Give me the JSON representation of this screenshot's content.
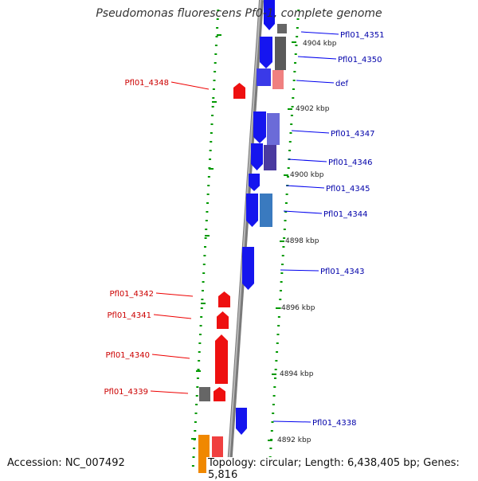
{
  "title": "Pseudomonas fluorescens Pf0-1, complete genome",
  "footer": {
    "accession": "Accession: NC_007492",
    "topology": "Topology: circular; Length: 6,438,405 bp; Genes: 5,816"
  },
  "colors": {
    "backbone": "#8a8a8a",
    "forward_gene": "#0000ee",
    "reverse_gene": "#ee0000",
    "tick": "#009900",
    "forward_label": "#0000aa",
    "reverse_label": "#cc0000"
  },
  "scale_labels": [
    "4904 kbp",
    "4902 kbp",
    "4900 kbp",
    "4898 kbp",
    "4896 kbp",
    "4894 kbp",
    "4892 kbp"
  ],
  "forward_genes": [
    "Pfl01_4351",
    "Pfl01_4350",
    "def",
    "Pfl01_4347",
    "Pfl01_4346",
    "Pfl01_4345",
    "Pfl01_4344",
    "Pfl01_4343",
    "Pfl01_4338"
  ],
  "reverse_genes": [
    "Pfl01_4348",
    "Pfl01_4342",
    "Pfl01_4341",
    "Pfl01_4340",
    "Pfl01_4339"
  ]
}
